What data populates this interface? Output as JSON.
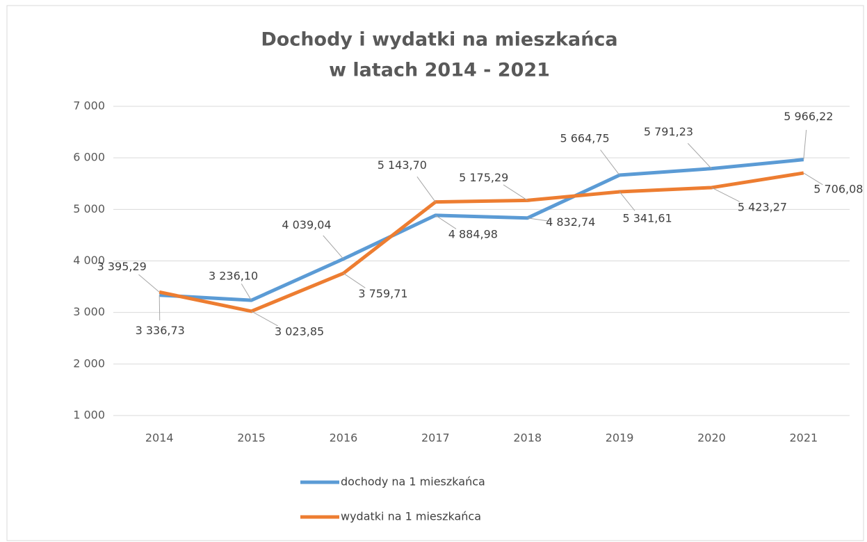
{
  "chart_data": {
    "type": "line",
    "title": [
      "Dochody i wydatki na mieszkańca",
      "w latach 2014 - 2021"
    ],
    "categories": [
      "2014",
      "2015",
      "2016",
      "2017",
      "2018",
      "2019",
      "2020",
      "2021"
    ],
    "series": [
      {
        "name": "dochody na 1 mieszkańca",
        "color": "#5b9bd5",
        "values": [
          3336.73,
          3236.1,
          4039.04,
          4884.98,
          4832.74,
          5664.75,
          5791.23,
          5966.22
        ],
        "value_labels": [
          "3 336,73",
          "3 236,10",
          "4 039,04",
          "4 884,98",
          "4 832,74",
          "5 664,75",
          "5 791,23",
          "5 966,22"
        ]
      },
      {
        "name": "wydatki na 1 mieszkańca",
        "color": "#ed7d31",
        "values": [
          3395.29,
          3023.85,
          3759.71,
          5143.7,
          5175.29,
          5341.61,
          5423.27,
          5706.08
        ],
        "value_labels": [
          "3 395,29",
          "3 023,85",
          "3 759,71",
          "5 143,70",
          "5 175,29",
          "5 341,61",
          "5 423,27",
          "5 706,08"
        ]
      }
    ],
    "ylim": [
      1000,
      7000
    ],
    "yticks": [
      {
        "value": 1000,
        "label": "1 000"
      },
      {
        "value": 2000,
        "label": "2 000"
      },
      {
        "value": 3000,
        "label": "3 000"
      },
      {
        "value": 4000,
        "label": "4 000"
      },
      {
        "value": 5000,
        "label": "5 000"
      },
      {
        "value": 6000,
        "label": "6 000"
      },
      {
        "value": 7000,
        "label": "7 000"
      }
    ],
    "grid": true,
    "legend": "bottom"
  }
}
